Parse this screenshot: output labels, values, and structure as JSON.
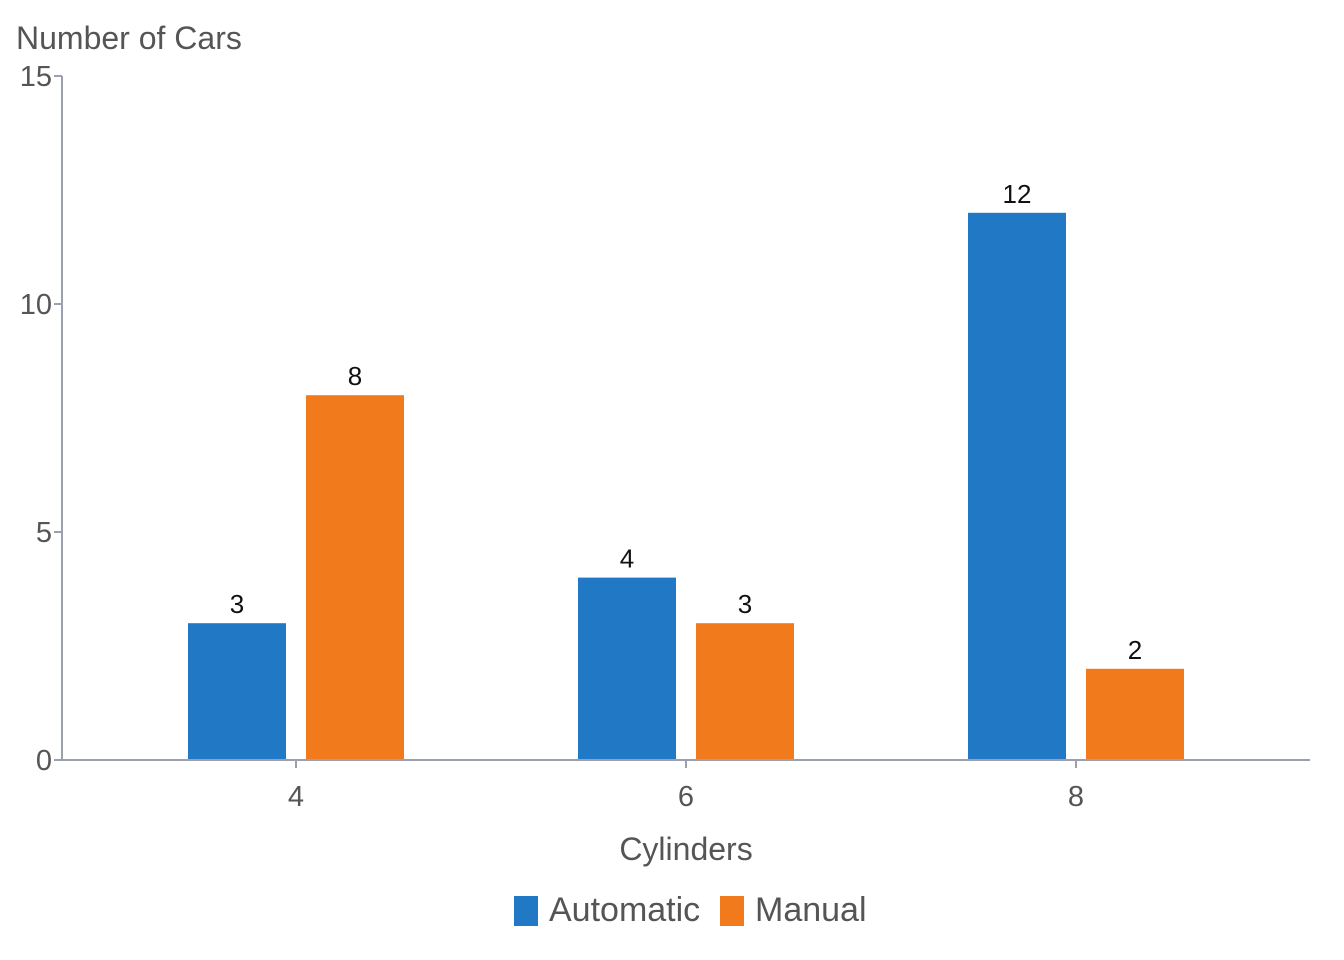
{
  "chart_data": {
    "type": "bar",
    "ylabel": "Number of Cars",
    "xlabel": "Cylinders",
    "categories": [
      "4",
      "6",
      "8"
    ],
    "series": [
      {
        "name": "Automatic",
        "color": "#2179c6",
        "values": [
          3,
          4,
          12
        ]
      },
      {
        "name": "Manual",
        "color": "#f17a1c",
        "values": [
          8,
          3,
          2
        ]
      }
    ],
    "ylim": [
      0,
      15
    ],
    "yticks": [
      0,
      5,
      10,
      15
    ],
    "grid": false,
    "legend_position": "bottom-center",
    "axis_color": "#9aa0ad"
  }
}
